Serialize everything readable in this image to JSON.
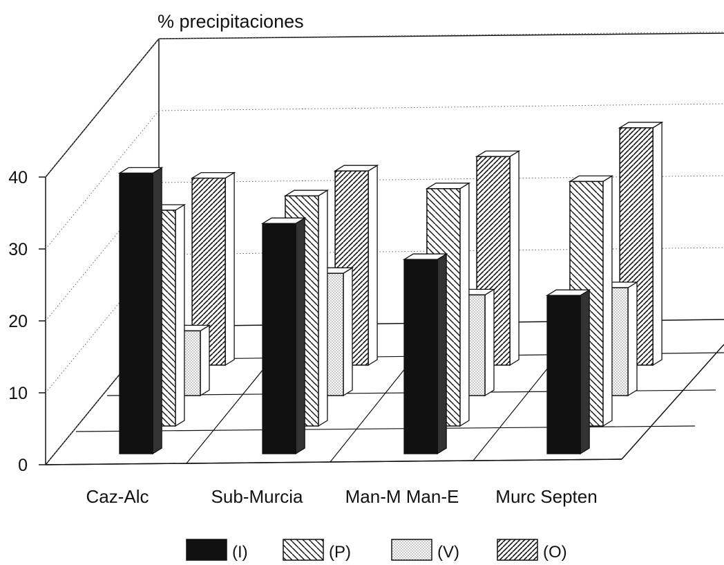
{
  "chart_data": {
    "type": "bar",
    "title": "",
    "ylabel": "% precipitaciones",
    "xlabel": "",
    "ylim": [
      0,
      40
    ],
    "yticks": [
      "0",
      "10",
      "20",
      "30",
      "40"
    ],
    "categories": [
      "Caz-Alc",
      "Sub-Murcia",
      "Man-M Man-E",
      "Murc Septen"
    ],
    "series": [
      {
        "name": "(I)",
        "values": [
          39,
          32,
          27,
          22
        ]
      },
      {
        "name": "(P)",
        "values": [
          30,
          32,
          33,
          34
        ]
      },
      {
        "name": "(V)",
        "values": [
          9,
          17,
          14,
          15
        ]
      },
      {
        "name": "(O)",
        "values": [
          26,
          27,
          29,
          33
        ]
      }
    ],
    "grid": true,
    "legend_position": "bottom",
    "colors": {
      "I": "#111111",
      "P": "#ffffff",
      "V": "#f2f2f2",
      "O": "#ffffff",
      "axis": "#111111"
    }
  }
}
